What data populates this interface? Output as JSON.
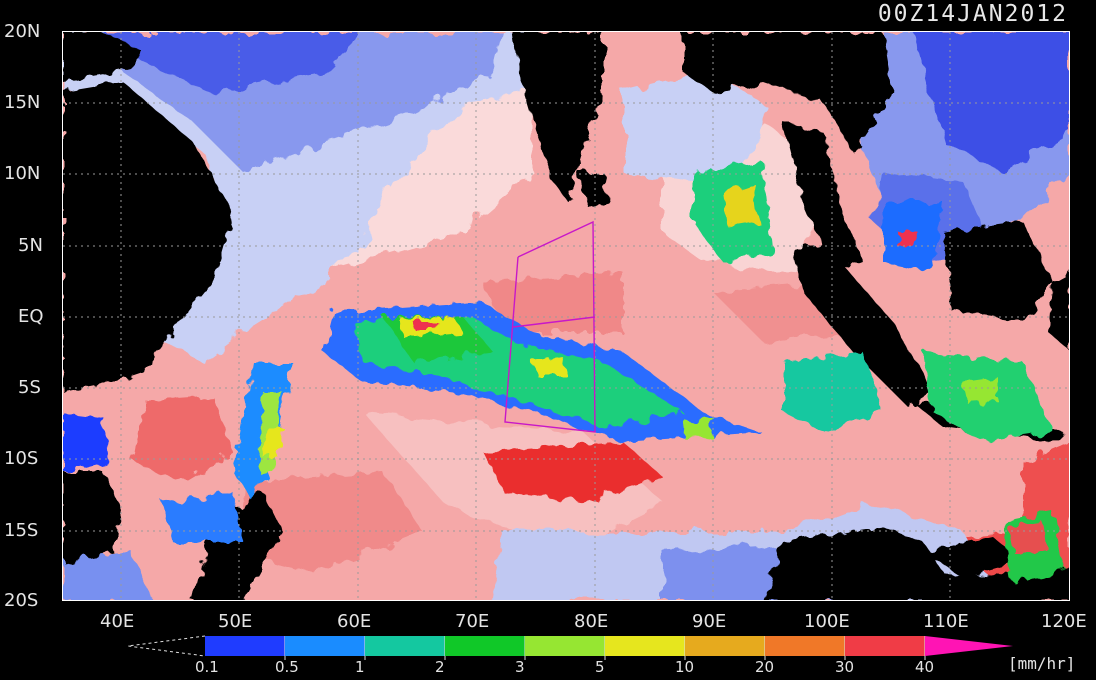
{
  "header": {
    "timestamp": "00Z14JAN2012"
  },
  "axes": {
    "lat_labels": [
      "20N",
      "15N",
      "10N",
      "5N",
      "EQ",
      "5S",
      "10S",
      "15S",
      "20S"
    ],
    "lon_labels": [
      "40E",
      "50E",
      "60E",
      "70E",
      "80E",
      "90E",
      "100E",
      "110E",
      "120E"
    ]
  },
  "colorbar": {
    "levels": [
      "0.1",
      "0.5",
      "1",
      "2",
      "3",
      "5",
      "10",
      "20",
      "30",
      "40"
    ],
    "colors": [
      "#1f3cff",
      "#1a8cff",
      "#14c8a0",
      "#10c828",
      "#96e632",
      "#e6e61e",
      "#e6aa1e",
      "#f07828",
      "#f03c46",
      "#ff14b4"
    ],
    "unit": "[mm/hr]"
  },
  "legend_colors": {
    "dry_blue_dark": "#3c50e6",
    "dry_blue_mid": "#7890f0",
    "dry_blue_light": "#c8d0f5",
    "land": "#000000",
    "sst_light_pink": "#fadcdc",
    "sst_pink": "#f5a0a0",
    "sst_red": "#f07070",
    "sst_deep_red": "#eb2828"
  }
}
